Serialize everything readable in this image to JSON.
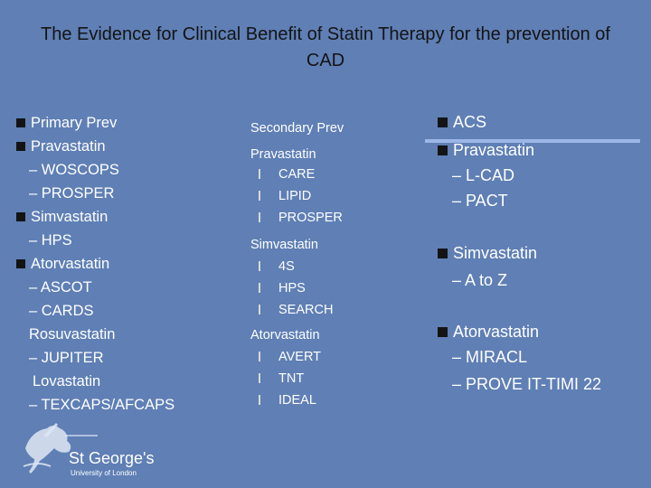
{
  "title": "The Evidence for Clinical Benefit of Statin Therapy for the prevention of CAD",
  "primary": {
    "heading": "Primary Prev",
    "lines": [
      "Pravastatin",
      "– WOSCOPS",
      "– PROSPER",
      "Simvastatin",
      "– HPS",
      "Atorvastatin",
      "– ASCOT",
      "– CARDS",
      "Rosuvastatin",
      "– JUPITER",
      "Lovastatin",
      "– TEXCAPS/AFCAPS"
    ]
  },
  "secondary": {
    "heading": "Secondary Prev",
    "groups": [
      {
        "drug": "Pravastatin",
        "trials": [
          "CARE",
          "LIPID",
          "PROSPER"
        ]
      },
      {
        "drug": "Simvastatin",
        "trials": [
          "4S",
          "HPS",
          "SEARCH"
        ]
      },
      {
        "drug": "Atorvastatin",
        "trials": [
          "AVERT",
          "TNT",
          "IDEAL"
        ]
      }
    ]
  },
  "acs": {
    "heading": "ACS",
    "groups": [
      {
        "drug": "Pravastatin",
        "trials": [
          "– L-CAD",
          "– PACT"
        ]
      },
      {
        "drug": "Simvastatin",
        "trials": [
          "– A to Z"
        ]
      },
      {
        "drug": "Atorvastatin",
        "trials": [
          "– MIRACL",
          "– PROVE IT-TIMI 22"
        ]
      }
    ]
  },
  "logo": {
    "name": "St George's",
    "subtitle": "University of London"
  },
  "colors": {
    "background": "#5f7fb5",
    "title": "#141414",
    "text": "#ffffff"
  }
}
